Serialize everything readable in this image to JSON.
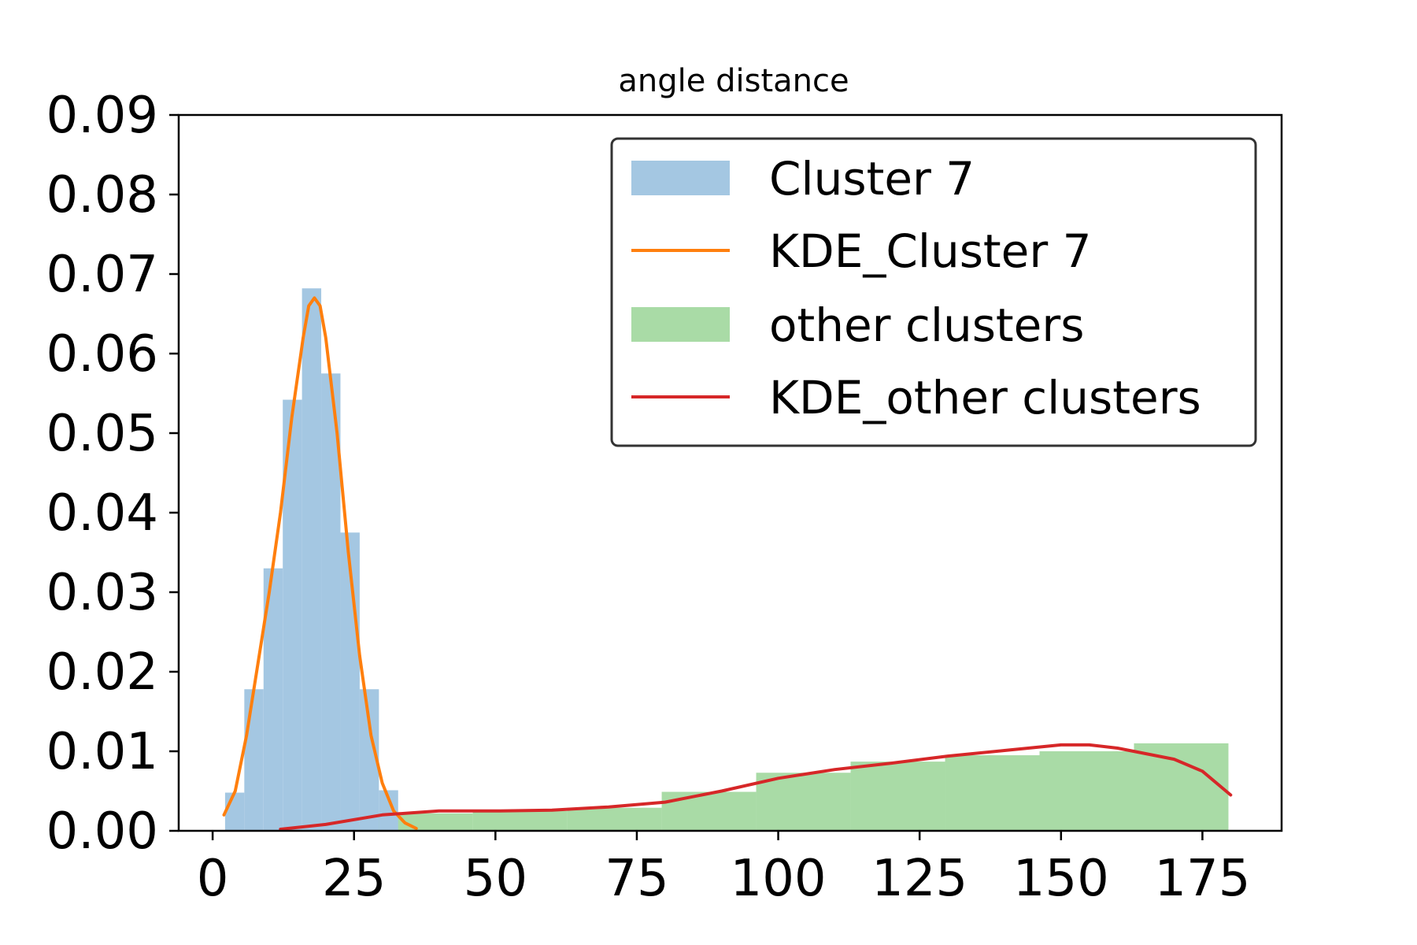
{
  "chart_data": {
    "type": "bar",
    "title": "angle distance",
    "xlabel": "",
    "ylabel": "",
    "xlim": [
      -6,
      189
    ],
    "ylim": [
      0,
      0.09
    ],
    "xticks": [
      0,
      25,
      50,
      75,
      100,
      125,
      150,
      175
    ],
    "yticks": [
      0.0,
      0.01,
      0.02,
      0.03,
      0.04,
      0.05,
      0.06,
      0.07,
      0.08,
      0.09
    ],
    "ytick_labels": [
      "0.00",
      "0.01",
      "0.02",
      "0.03",
      "0.04",
      "0.05",
      "0.06",
      "0.07",
      "0.08",
      "0.09"
    ],
    "grid": false,
    "legend_position": "top-right",
    "series": [
      {
        "name": "Cluster 7",
        "kind": "histogram",
        "color": "#a4c7e2",
        "bin_edges": [
          2.2,
          5.6,
          9.0,
          12.4,
          15.8,
          19.2,
          22.6,
          26.0,
          29.4,
          32.8
        ],
        "values": [
          0.0048,
          0.0178,
          0.033,
          0.0542,
          0.0682,
          0.0575,
          0.0375,
          0.0178,
          0.0051
        ]
      },
      {
        "name": "KDE_Cluster 7",
        "kind": "line",
        "color": "#ff7f0e",
        "x": [
          2,
          4,
          6,
          8,
          10,
          12,
          14,
          16,
          17,
          18,
          19,
          20,
          22,
          24,
          26,
          28,
          30,
          32,
          34,
          36
        ],
        "y": [
          0.002,
          0.005,
          0.012,
          0.021,
          0.03,
          0.04,
          0.052,
          0.062,
          0.066,
          0.067,
          0.066,
          0.062,
          0.05,
          0.035,
          0.022,
          0.012,
          0.006,
          0.0025,
          0.001,
          0.0003
        ]
      },
      {
        "name": "other clusters",
        "kind": "histogram",
        "color": "#a9dba6",
        "bin_edges": [
          12.6,
          29.3,
          46.0,
          62.7,
          79.4,
          96.1,
          112.8,
          129.5,
          146.2,
          162.9,
          179.6
        ],
        "values": [
          0.0008,
          0.0022,
          0.0025,
          0.0029,
          0.0049,
          0.0073,
          0.0087,
          0.0095,
          0.01,
          0.011
        ]
      },
      {
        "name": "KDE_other clusters",
        "kind": "line",
        "color": "#d62728",
        "x": [
          12,
          20,
          30,
          40,
          50,
          60,
          70,
          80,
          90,
          100,
          110,
          120,
          130,
          140,
          150,
          155,
          160,
          170,
          175,
          180
        ],
        "y": [
          0.0002,
          0.0008,
          0.002,
          0.0025,
          0.0025,
          0.0026,
          0.003,
          0.0036,
          0.005,
          0.0066,
          0.0077,
          0.0085,
          0.0094,
          0.0101,
          0.0108,
          0.0108,
          0.0104,
          0.009,
          0.0075,
          0.0045
        ]
      }
    ]
  }
}
